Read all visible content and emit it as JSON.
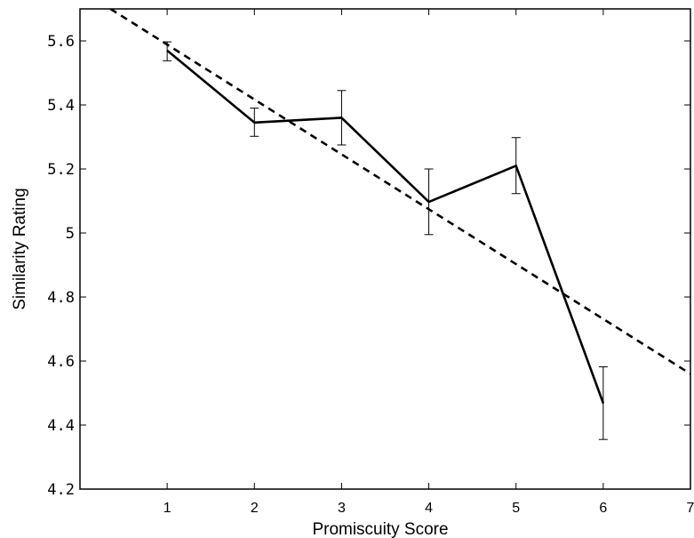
{
  "chart_data": {
    "type": "line",
    "title": "",
    "xlabel": "Promiscuity Score",
    "ylabel": "Similarity Rating",
    "xlim": [
      0,
      7
    ],
    "ylim": [
      4.2,
      5.7
    ],
    "x_ticks": [
      1,
      2,
      3,
      4,
      5,
      6,
      7
    ],
    "x_tick_labels": [
      "1",
      "2",
      "3",
      "4",
      "5",
      "6",
      "7"
    ],
    "y_ticks": [
      4.2,
      4.4,
      4.6,
      4.8,
      5.0,
      5.2,
      5.4,
      5.6
    ],
    "y_tick_labels": [
      "4.2",
      "4.4",
      "4.6",
      "4.8",
      "5",
      "5.2",
      "5.4",
      "5.6"
    ],
    "grid": false,
    "legend": "none",
    "series": [
      {
        "style": "solid",
        "color": "#000000",
        "x": [
          1,
          2,
          3,
          4,
          5,
          6
        ],
        "y": [
          5.57,
          5.345,
          5.36,
          5.097,
          5.21,
          4.468
        ],
        "error_low": [
          5.538,
          5.302,
          5.275,
          4.995,
          5.123,
          4.355
        ],
        "error_high": [
          5.597,
          5.39,
          5.445,
          5.2,
          5.298,
          4.582
        ]
      },
      {
        "style": "dashed",
        "color": "#000000",
        "x": [
          0.35,
          7
        ],
        "y": [
          5.7,
          4.56
        ]
      }
    ]
  }
}
